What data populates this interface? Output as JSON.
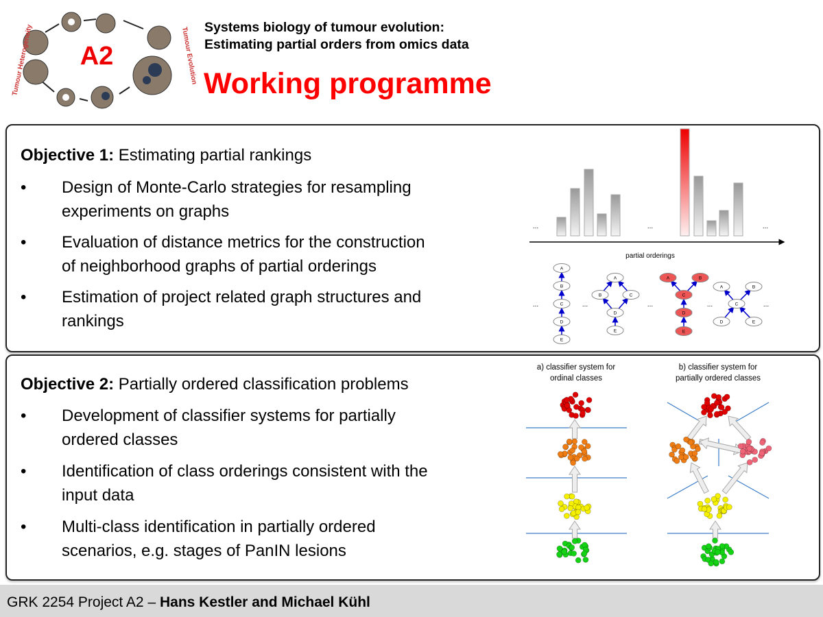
{
  "logo": {
    "center_label": "A2",
    "left_arc_text": "Tumour Heterogeneity",
    "right_arc_text": "Tumour Evolution"
  },
  "header": {
    "subtitle_line1": "Systems biology of tumour evolution:",
    "subtitle_line2": "Estimating partial orders from omics data",
    "title": "Working programme",
    "title_color": "#ff0000"
  },
  "objective1": {
    "label": "Objective 1:",
    "heading": " Estimating partial rankings",
    "bullets": [
      {
        "line1": "Design of Monte-Carlo strategies for resampling",
        "line2": "experiments on graphs"
      },
      {
        "line1": "Evaluation of distance metrics for the construction",
        "line2": "of neighborhood graphs of partial orderings"
      },
      {
        "line1": "Estimation of project related graph structures and",
        "line2": "rankings"
      }
    ],
    "figure": {
      "axis_label": "partial orderings",
      "ellipsis": "...",
      "node_labels": [
        "A",
        "B",
        "C",
        "D",
        "E"
      ],
      "highlight_color": "#ee5555"
    }
  },
  "objective2": {
    "label": "Objective 2:",
    "heading": " Partially ordered classification problems",
    "bullets": [
      {
        "line1": "Development of classifier systems for partially",
        "line2": "ordered classes"
      },
      {
        "line1": "Identification of class orderings consistent with the",
        "line2": "input data"
      },
      {
        "line1": "Multi-class identification in partially ordered",
        "line2": "scenarios, e.g. stages of PanIN lesions"
      }
    ],
    "figure": {
      "a_title_line1": "a) classifier system for",
      "a_title_line2": "ordinal classes",
      "b_title_line1": "b) classifier system for",
      "b_title_line2": "partially ordered classes",
      "class_colors": [
        "#e00000",
        "#f07d14",
        "#f06478",
        "#f5f000",
        "#14d214"
      ]
    }
  },
  "footer": {
    "prefix": "GRK 2254 Project A2 – ",
    "authors": "Hans Kestler and Michael Kühl"
  }
}
